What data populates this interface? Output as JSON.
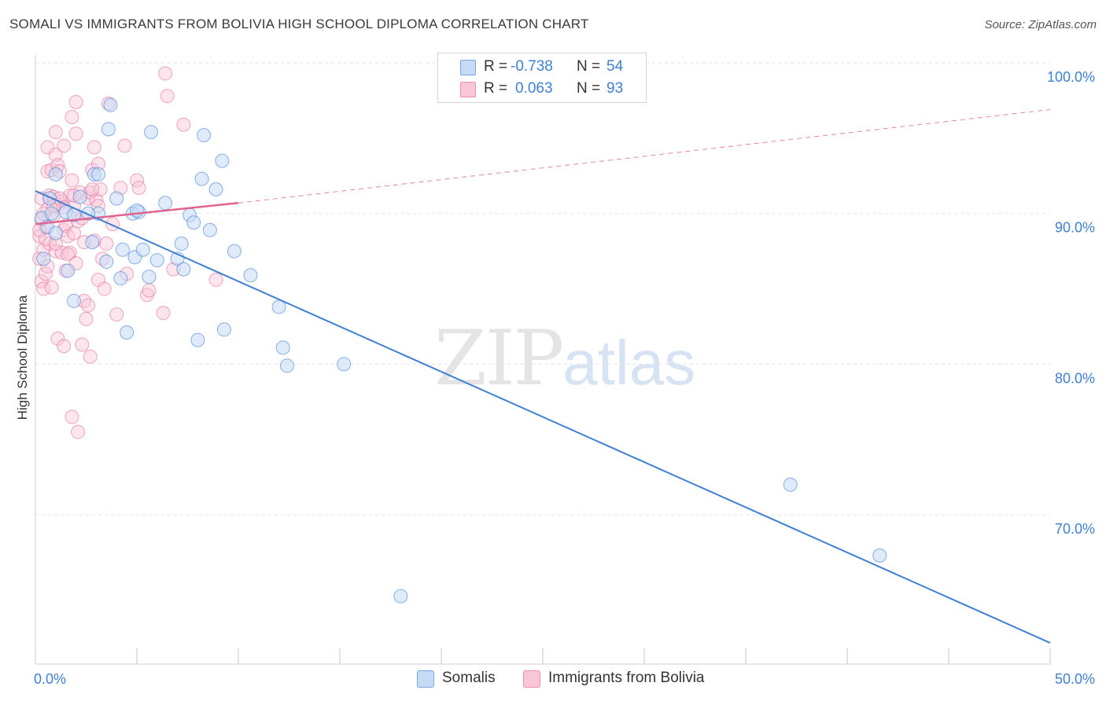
{
  "header": {
    "title": "SOMALI VS IMMIGRANTS FROM BOLIVIA HIGH SCHOOL DIPLOMA CORRELATION CHART",
    "source": "Source: ZipAtlas.com"
  },
  "stats": [
    {
      "r_label": "R =",
      "r_value": "-0.738",
      "n_label": "N =",
      "n_value": "54",
      "color": "#a9c8f0"
    },
    {
      "r_label": "R =",
      "r_value": "0.063",
      "n_label": "N =",
      "n_value": "93",
      "color": "#f7b6ca"
    }
  ],
  "legend": {
    "somalis": "Somalis",
    "bolivia": "Immigrants from Bolivia"
  },
  "watermark": {
    "zip": "ZIP",
    "atlas": "atlas"
  },
  "chart_data": {
    "type": "scatter",
    "title": "SOMALI VS IMMIGRANTS FROM BOLIVIA HIGH SCHOOL DIPLOMA CORRELATION CHART",
    "xlabel": "",
    "ylabel": "High School Diploma",
    "xlim": [
      0,
      50
    ],
    "ylim": [
      61,
      102
    ],
    "x_tick_labels": [
      {
        "value": 0,
        "label": "0.0%"
      },
      {
        "value": 50,
        "label": "50.0%"
      }
    ],
    "y_tick_labels": [
      {
        "value": 100,
        "label": "100.0%"
      },
      {
        "value": 90,
        "label": "90.0%"
      },
      {
        "value": 80,
        "label": "80.0%"
      },
      {
        "value": 70,
        "label": "70.0%"
      }
    ],
    "grid": true,
    "legend_position": "bottom-center",
    "colors": {
      "somalis": "#3f7fd6",
      "somalis_fill": "#c5daf5",
      "bolivia": "#e0648e",
      "bolivia_fill": "#f9c6d6"
    },
    "series": [
      {
        "name": "Somalis",
        "trend": {
          "x0": 0,
          "y0": 91.5,
          "x1": 50,
          "y1": 61.5
        },
        "points": [
          [
            0.3,
            89.7
          ],
          [
            0.4,
            87.0
          ],
          [
            0.6,
            89.1
          ],
          [
            0.7,
            91.0
          ],
          [
            0.8,
            90.0
          ],
          [
            1.0,
            92.6
          ],
          [
            1.0,
            88.7
          ],
          [
            1.5,
            90.1
          ],
          [
            1.6,
            86.2
          ],
          [
            1.9,
            89.9
          ],
          [
            1.9,
            84.2
          ],
          [
            2.2,
            91.1
          ],
          [
            2.8,
            88.1
          ],
          [
            2.9,
            92.6
          ],
          [
            3.1,
            92.6
          ],
          [
            3.1,
            90.0
          ],
          [
            3.5,
            86.8
          ],
          [
            3.6,
            95.6
          ],
          [
            3.7,
            97.2
          ],
          [
            4.0,
            91.0
          ],
          [
            4.2,
            85.7
          ],
          [
            4.3,
            87.6
          ],
          [
            4.5,
            82.1
          ],
          [
            4.8,
            90.0
          ],
          [
            4.9,
            87.1
          ],
          [
            5.1,
            90.1
          ],
          [
            5.3,
            87.6
          ],
          [
            5.6,
            85.8
          ],
          [
            5.7,
            95.4
          ],
          [
            6.0,
            86.9
          ],
          [
            6.4,
            90.7
          ],
          [
            7.0,
            87.0
          ],
          [
            7.2,
            88.0
          ],
          [
            7.3,
            86.3
          ],
          [
            7.6,
            89.9
          ],
          [
            7.8,
            89.4
          ],
          [
            8.0,
            81.6
          ],
          [
            8.2,
            92.3
          ],
          [
            8.3,
            95.2
          ],
          [
            8.6,
            88.9
          ],
          [
            8.9,
            91.6
          ],
          [
            9.2,
            93.5
          ],
          [
            9.3,
            82.3
          ],
          [
            9.8,
            87.5
          ],
          [
            10.6,
            85.9
          ],
          [
            12.0,
            83.8
          ],
          [
            12.2,
            81.1
          ],
          [
            12.4,
            79.9
          ],
          [
            15.2,
            80.0
          ],
          [
            18.0,
            64.6
          ],
          [
            37.2,
            72.0
          ],
          [
            41.6,
            67.3
          ],
          [
            5.0,
            90.2
          ],
          [
            2.6,
            90.0
          ]
        ]
      },
      {
        "name": "Immigrants from Bolivia",
        "trend": {
          "x0": 0,
          "y0": 89.3,
          "x1": 10,
          "y1": 90.7,
          "ext_x1": 50,
          "ext_y1": 96.9
        },
        "points": [
          [
            0.2,
            87.0
          ],
          [
            0.2,
            88.5
          ],
          [
            0.3,
            85.5
          ],
          [
            0.3,
            91.0
          ],
          [
            0.4,
            85.0
          ],
          [
            0.4,
            87.6
          ],
          [
            0.5,
            86.0
          ],
          [
            0.5,
            89.1
          ],
          [
            0.6,
            90.3
          ],
          [
            0.6,
            92.8
          ],
          [
            0.6,
            94.4
          ],
          [
            0.7,
            88.0
          ],
          [
            0.7,
            91.2
          ],
          [
            0.8,
            92.9
          ],
          [
            0.9,
            89.9
          ],
          [
            0.9,
            91.1
          ],
          [
            1.0,
            87.5
          ],
          [
            1.0,
            93.9
          ],
          [
            1.0,
            95.4
          ],
          [
            1.1,
            90.6
          ],
          [
            1.1,
            93.2
          ],
          [
            1.1,
            81.7
          ],
          [
            1.2,
            92.8
          ],
          [
            1.3,
            87.4
          ],
          [
            1.3,
            90.8
          ],
          [
            1.4,
            94.5
          ],
          [
            1.4,
            81.2
          ],
          [
            1.4,
            88.9
          ],
          [
            1.5,
            86.2
          ],
          [
            1.5,
            89.2
          ],
          [
            1.6,
            88.5
          ],
          [
            1.7,
            91.2
          ],
          [
            1.7,
            87.4
          ],
          [
            1.8,
            96.4
          ],
          [
            1.8,
            92.2
          ],
          [
            1.8,
            76.5
          ],
          [
            1.9,
            88.7
          ],
          [
            1.9,
            90.5
          ],
          [
            2.0,
            95.3
          ],
          [
            2.0,
            97.4
          ],
          [
            2.1,
            89.5
          ],
          [
            2.1,
            75.5
          ],
          [
            2.2,
            91.4
          ],
          [
            2.3,
            81.3
          ],
          [
            2.4,
            84.2
          ],
          [
            2.4,
            88.1
          ],
          [
            2.5,
            83.0
          ],
          [
            2.6,
            91.0
          ],
          [
            2.6,
            83.9
          ],
          [
            2.7,
            80.5
          ],
          [
            2.7,
            91.4
          ],
          [
            2.8,
            92.9
          ],
          [
            2.9,
            88.2
          ],
          [
            2.9,
            94.4
          ],
          [
            3.0,
            90.9
          ],
          [
            3.1,
            93.3
          ],
          [
            3.1,
            85.6
          ],
          [
            3.2,
            91.6
          ],
          [
            3.3,
            87.0
          ],
          [
            3.4,
            85.0
          ],
          [
            3.5,
            88.0
          ],
          [
            3.6,
            97.3
          ],
          [
            4.0,
            83.3
          ],
          [
            4.2,
            91.7
          ],
          [
            4.4,
            94.5
          ],
          [
            4.5,
            86.0
          ],
          [
            5.0,
            92.2
          ],
          [
            5.1,
            91.7
          ],
          [
            5.5,
            84.6
          ],
          [
            5.6,
            84.9
          ],
          [
            6.3,
            83.4
          ],
          [
            6.4,
            99.3
          ],
          [
            6.5,
            97.8
          ],
          [
            6.8,
            86.3
          ],
          [
            7.3,
            95.9
          ],
          [
            8.9,
            85.6
          ],
          [
            0.3,
            89.6
          ],
          [
            0.5,
            88.3
          ],
          [
            1.2,
            91.0
          ],
          [
            1.6,
            87.3
          ],
          [
            0.8,
            85.1
          ],
          [
            2.0,
            86.7
          ],
          [
            3.8,
            89.3
          ],
          [
            0.4,
            90.0
          ],
          [
            1.9,
            91.2
          ],
          [
            2.3,
            89.7
          ],
          [
            0.6,
            86.5
          ],
          [
            1.0,
            88.0
          ],
          [
            2.8,
            91.6
          ],
          [
            0.2,
            88.9
          ],
          [
            1.4,
            90.4
          ],
          [
            3.1,
            90.5
          ],
          [
            0.9,
            90.5
          ]
        ]
      }
    ]
  }
}
